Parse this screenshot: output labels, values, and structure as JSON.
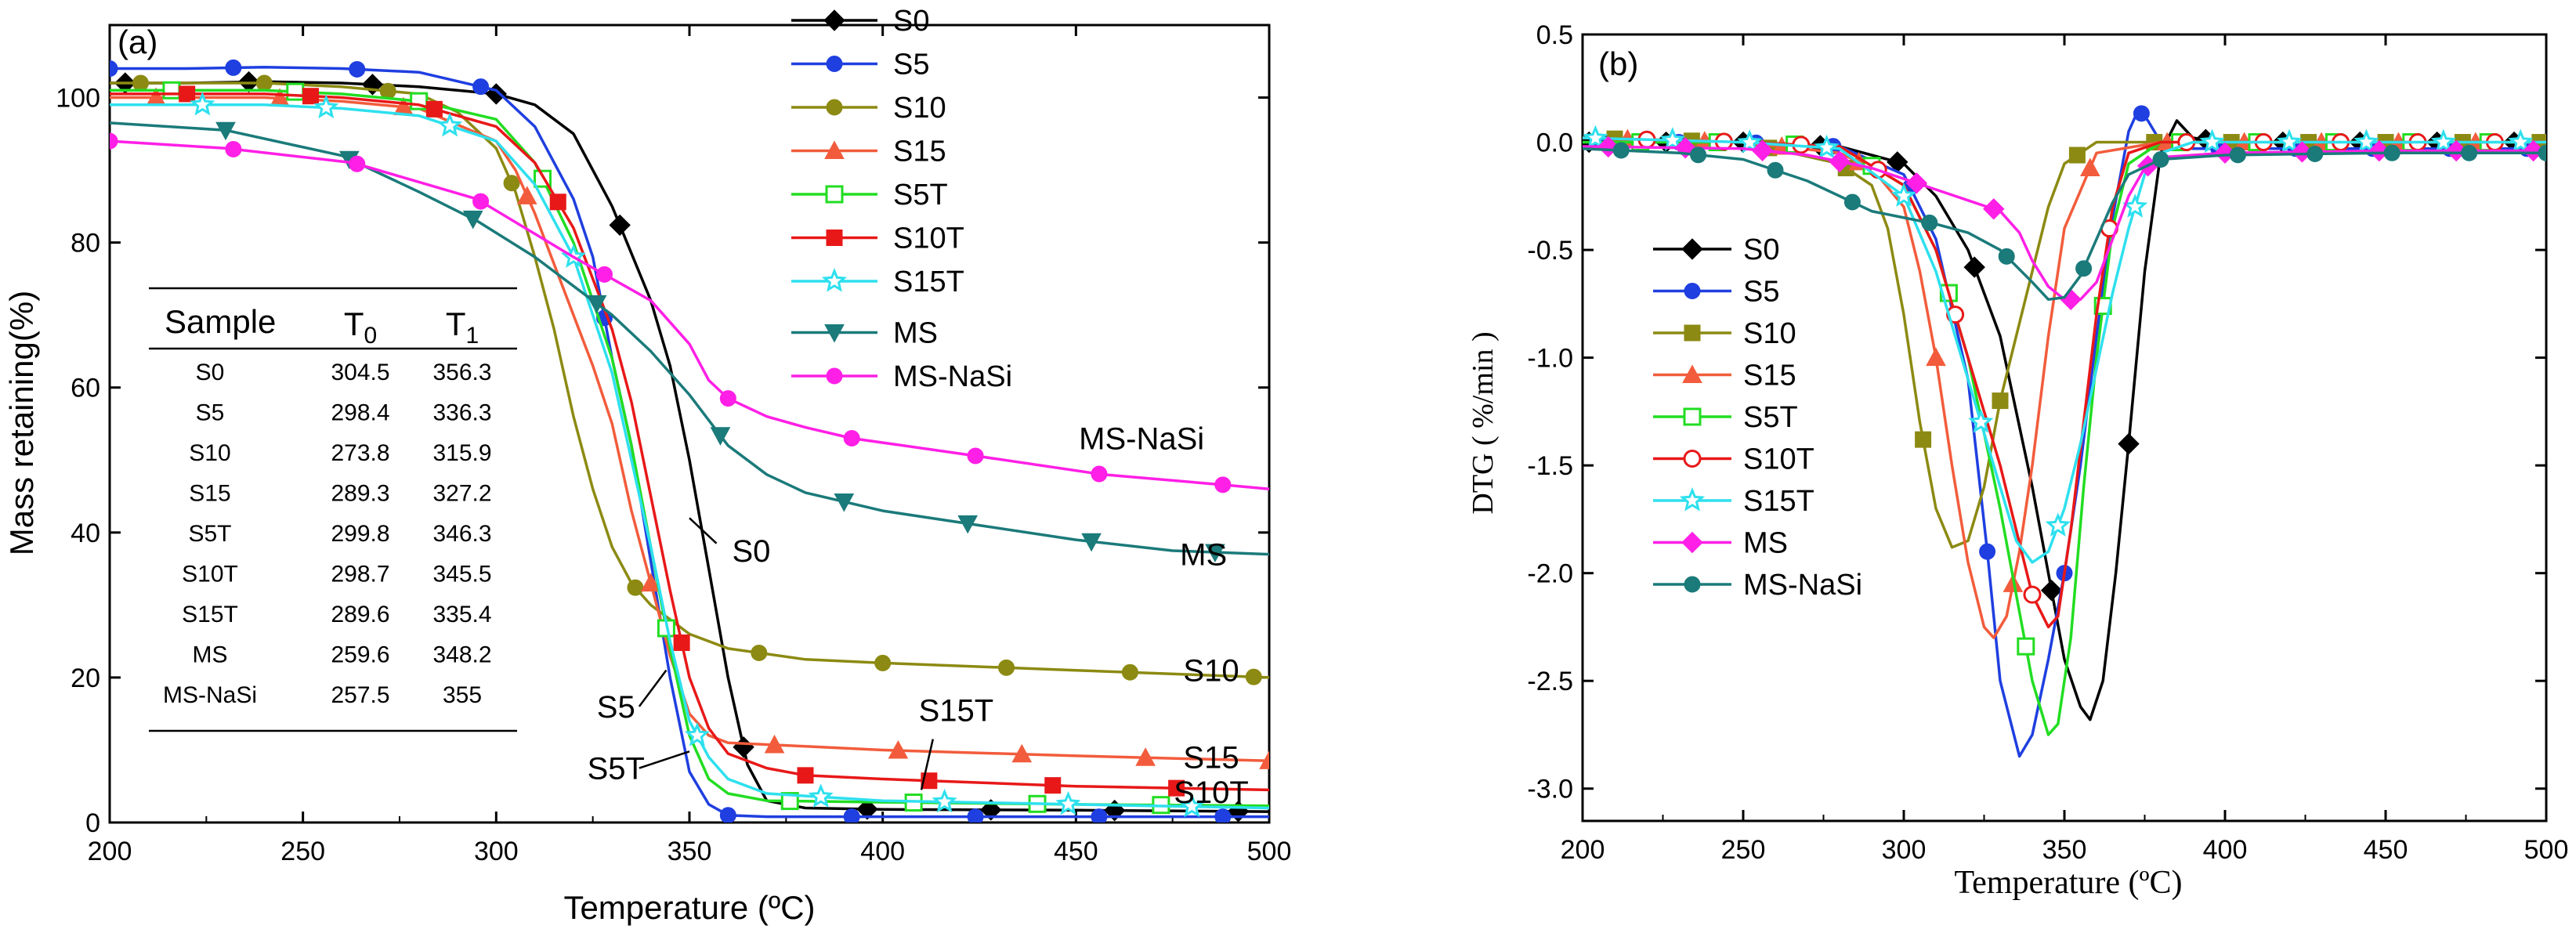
{
  "chart_data": [
    {
      "type": "line",
      "panel_label": "(a)",
      "xlabel": "Temperature (ºC)",
      "ylabel": "Mass retaining(%)",
      "xlim": [
        200,
        500
      ],
      "ylim": [
        0,
        110
      ],
      "xticks": [
        200,
        250,
        300,
        350,
        400,
        450,
        500
      ],
      "yticks": [
        0,
        20,
        40,
        60,
        80,
        100
      ],
      "grid": false,
      "legend_position": "right, outside plot area",
      "series": [
        {
          "name": "S0",
          "color": "#000000",
          "marker": "diamond",
          "x": [
            200,
            220,
            240,
            260,
            280,
            300,
            310,
            320,
            330,
            340,
            345,
            350,
            355,
            360,
            365,
            370,
            380,
            400,
            450,
            500
          ],
          "y": [
            102,
            102,
            102.2,
            102,
            101.5,
            100.5,
            99,
            95,
            85,
            72,
            63,
            50,
            35,
            20,
            8,
            3,
            2,
            1.8,
            1.7,
            1.5
          ]
        },
        {
          "name": "S5",
          "color": "#1f3fe0",
          "marker": "circle",
          "x": [
            200,
            220,
            240,
            260,
            280,
            300,
            310,
            320,
            325,
            330,
            335,
            340,
            345,
            350,
            355,
            360,
            370,
            400,
            450,
            500
          ],
          "y": [
            104,
            104,
            104.2,
            104,
            103.5,
            101,
            96,
            86,
            78,
            64,
            52,
            36,
            20,
            7,
            2.5,
            1,
            0.8,
            0.8,
            0.8,
            0.8
          ]
        },
        {
          "name": "S10",
          "color": "#8c8a12",
          "marker": "circle",
          "x": [
            200,
            220,
            240,
            260,
            280,
            290,
            300,
            305,
            310,
            315,
            320,
            325,
            330,
            335,
            340,
            350,
            360,
            380,
            400,
            450,
            500
          ],
          "y": [
            102,
            102,
            102,
            101.5,
            100.5,
            98,
            93,
            87,
            78,
            68,
            56,
            46,
            38,
            33,
            30,
            26,
            24,
            22.5,
            22,
            21,
            20
          ]
        },
        {
          "name": "S15",
          "color": "#f25c3c",
          "marker": "triangle",
          "x": [
            200,
            220,
            240,
            260,
            280,
            300,
            305,
            310,
            315,
            320,
            325,
            330,
            335,
            340,
            345,
            350,
            355,
            360,
            380,
            400,
            450,
            500
          ],
          "y": [
            100,
            100,
            100,
            99.5,
            98.5,
            94,
            90,
            84,
            77,
            70,
            63,
            55,
            43,
            33,
            23,
            15,
            12,
            11,
            10.5,
            10,
            9.2,
            8.5
          ]
        },
        {
          "name": "S5T",
          "color": "#22dd22",
          "marker": "square-open",
          "x": [
            200,
            220,
            240,
            260,
            280,
            300,
            310,
            320,
            330,
            335,
            340,
            345,
            350,
            355,
            360,
            370,
            400,
            450,
            500
          ],
          "y": [
            101,
            101,
            101,
            100.5,
            99.5,
            97,
            91,
            80,
            64,
            52,
            38,
            24,
            12,
            6,
            4,
            3,
            2.8,
            2.5,
            2.3
          ]
        },
        {
          "name": "S10T",
          "color": "#e81818",
          "marker": "square",
          "x": [
            200,
            220,
            240,
            260,
            280,
            300,
            310,
            320,
            330,
            335,
            340,
            345,
            350,
            355,
            360,
            370,
            380,
            400,
            450,
            500
          ],
          "y": [
            100.5,
            100.5,
            100.5,
            100,
            99,
            96,
            91,
            82,
            68,
            58,
            45,
            32,
            20,
            13,
            9.5,
            7.5,
            6.5,
            6,
            5,
            4.5
          ]
        },
        {
          "name": "S15T",
          "color": "#2ee0ee",
          "marker": "star-open",
          "x": [
            200,
            220,
            240,
            260,
            280,
            300,
            310,
            320,
            330,
            335,
            340,
            345,
            350,
            355,
            360,
            370,
            400,
            450,
            500
          ],
          "y": [
            99,
            99,
            99,
            98.5,
            97.5,
            94,
            88,
            78,
            62,
            50,
            38,
            25,
            14,
            9,
            6,
            4,
            3,
            2.5,
            2
          ]
        },
        {
          "name": "MS",
          "color": "#1b7a7a",
          "marker": "triangle-down",
          "x": [
            200,
            230,
            260,
            280,
            295,
            310,
            320,
            330,
            340,
            350,
            360,
            370,
            380,
            400,
            425,
            450,
            475,
            500
          ],
          "y": [
            96.5,
            95.5,
            92,
            87,
            83,
            78,
            74,
            70,
            65,
            59,
            52,
            48,
            45.5,
            43,
            41,
            39,
            37.5,
            37
          ]
        },
        {
          "name": "MS-NaSi",
          "color": "#ff1fe6",
          "marker": "circle",
          "x": [
            200,
            230,
            263,
            295,
            320,
            340,
            350,
            355,
            360,
            370,
            380,
            392,
            425,
            457,
            490,
            500
          ],
          "y": [
            94,
            93,
            91,
            86,
            78,
            72,
            66,
            61,
            58.5,
            56,
            54.5,
            53,
            50.5,
            48,
            46.5,
            46
          ]
        }
      ],
      "annotations": [
        {
          "text": "S0",
          "x": 366,
          "y": 36
        },
        {
          "text": "S5",
          "x": 331,
          "y": 14.5
        },
        {
          "text": "S5T",
          "x": 331,
          "y": 6
        },
        {
          "text": "MS-NaSi",
          "x": 467,
          "y": 51.5
        },
        {
          "text": "MS",
          "x": 483,
          "y": 35.5
        },
        {
          "text": "S10",
          "x": 485,
          "y": 19.5
        },
        {
          "text": "S15",
          "x": 485,
          "y": 7.5
        },
        {
          "text": "S15T",
          "x": 419,
          "y": 14
        },
        {
          "text": "S10T",
          "x": 485,
          "y": 2.7
        }
      ],
      "table": {
        "headers": [
          "Sample",
          "T0",
          "T1"
        ],
        "rows": [
          [
            "S0",
            "304.5",
            "356.3"
          ],
          [
            "S5",
            "298.4",
            "336.3"
          ],
          [
            "S10",
            "273.8",
            "315.9"
          ],
          [
            "S15",
            "289.3",
            "327.2"
          ],
          [
            "S5T",
            "299.8",
            "346.3"
          ],
          [
            "S10T",
            "298.7",
            "345.5"
          ],
          [
            "S15T",
            "289.6",
            "335.4"
          ],
          [
            "MS",
            "259.6",
            "348.2"
          ],
          [
            "MS-NaSi",
            "257.5",
            "355"
          ]
        ]
      }
    },
    {
      "type": "line",
      "panel_label": "(b)",
      "xlabel": "Temperature (ºC)",
      "ylabel": "DTG ( %/min )",
      "xlim": [
        200,
        500
      ],
      "ylim": [
        -3.15,
        0.5
      ],
      "xticks": [
        200,
        250,
        300,
        350,
        400,
        450,
        500
      ],
      "yticks": [
        -3.0,
        -2.5,
        -2.0,
        -1.5,
        -1.0,
        -0.5,
        0.0,
        0.5
      ],
      "grid": false,
      "legend_position": "left, inside plot area",
      "series": [
        {
          "name": "S0",
          "color": "#000000",
          "marker": "diamond",
          "x": [
            200,
            250,
            280,
            300,
            310,
            320,
            330,
            340,
            345,
            350,
            355,
            358,
            362,
            366,
            370,
            375,
            380,
            385,
            390,
            400,
            450,
            500
          ],
          "y": [
            0.0,
            0.0,
            -0.02,
            -0.1,
            -0.25,
            -0.5,
            -0.9,
            -1.6,
            -2.0,
            -2.4,
            -2.62,
            -2.68,
            -2.5,
            -2.0,
            -1.4,
            -0.6,
            -0.05,
            0.1,
            0.02,
            0.0,
            0.0,
            0.0
          ]
        },
        {
          "name": "S5",
          "color": "#1f3fe0",
          "marker": "circle",
          "x": [
            200,
            250,
            280,
            300,
            310,
            320,
            326,
            330,
            336,
            340,
            345,
            350,
            355,
            360,
            365,
            370,
            373,
            376,
            380,
            390,
            450,
            500
          ],
          "y": [
            0.0,
            0.0,
            -0.02,
            -0.15,
            -0.45,
            -1.1,
            -1.9,
            -2.5,
            -2.85,
            -2.75,
            -2.4,
            -2.0,
            -1.5,
            -0.9,
            -0.35,
            0.05,
            0.15,
            0.1,
            0.0,
            -0.03,
            -0.03,
            -0.03
          ]
        },
        {
          "name": "S10",
          "color": "#8c8a12",
          "marker": "square",
          "x": [
            200,
            250,
            280,
            290,
            295,
            300,
            305,
            310,
            315,
            320,
            325,
            330,
            335,
            340,
            345,
            350,
            360,
            380,
            450,
            500
          ],
          "y": [
            0.02,
            0.0,
            -0.1,
            -0.2,
            -0.4,
            -0.8,
            -1.3,
            -1.7,
            -1.88,
            -1.85,
            -1.6,
            -1.2,
            -0.9,
            -0.6,
            -0.3,
            -0.1,
            0.0,
            0.0,
            0.0,
            0.0
          ]
        },
        {
          "name": "S15",
          "color": "#f25c3c",
          "marker": "triangle",
          "x": [
            200,
            250,
            280,
            290,
            300,
            305,
            310,
            315,
            320,
            325,
            328,
            332,
            336,
            340,
            345,
            350,
            360,
            380,
            450,
            500
          ],
          "y": [
            0.02,
            0.0,
            -0.05,
            -0.12,
            -0.3,
            -0.6,
            -1.0,
            -1.5,
            -1.95,
            -2.25,
            -2.3,
            -2.2,
            -1.9,
            -1.5,
            -0.9,
            -0.4,
            -0.05,
            0.0,
            0.0,
            0.0
          ]
        },
        {
          "name": "S5T",
          "color": "#22dd22",
          "marker": "square-open",
          "x": [
            200,
            250,
            280,
            300,
            310,
            320,
            330,
            335,
            340,
            345,
            348,
            352,
            356,
            360,
            365,
            370,
            380,
            450,
            500
          ],
          "y": [
            0.0,
            0.0,
            -0.02,
            -0.2,
            -0.5,
            -1.0,
            -1.7,
            -2.1,
            -2.5,
            -2.75,
            -2.7,
            -2.3,
            -1.6,
            -1.0,
            -0.4,
            -0.1,
            0.0,
            0.0,
            0.0
          ]
        },
        {
          "name": "S10T",
          "color": "#e81818",
          "marker": "circle-open",
          "x": [
            200,
            250,
            280,
            300,
            310,
            320,
            330,
            335,
            340,
            345,
            348,
            352,
            356,
            360,
            365,
            370,
            380,
            450,
            500
          ],
          "y": [
            0.02,
            0.0,
            -0.02,
            -0.2,
            -0.5,
            -1.0,
            -1.5,
            -1.8,
            -2.1,
            -2.25,
            -2.2,
            -1.8,
            -1.3,
            -0.8,
            -0.3,
            -0.05,
            0.0,
            0.0,
            0.0
          ]
        },
        {
          "name": "S15T",
          "color": "#2ee0ee",
          "marker": "star-open",
          "x": [
            200,
            250,
            280,
            300,
            310,
            320,
            330,
            335,
            340,
            345,
            350,
            355,
            360,
            365,
            370,
            375,
            380,
            390,
            450,
            500
          ],
          "y": [
            0.02,
            0.0,
            -0.03,
            -0.25,
            -0.6,
            -1.1,
            -1.6,
            -1.85,
            -1.95,
            -1.9,
            -1.7,
            -1.4,
            -1.05,
            -0.7,
            -0.4,
            -0.15,
            -0.05,
            0.0,
            0.0,
            0.0
          ]
        },
        {
          "name": "MS",
          "color": "#ff1fe6",
          "marker": "diamond",
          "x": [
            200,
            250,
            270,
            290,
            300,
            310,
            320,
            330,
            336,
            340,
            345,
            350,
            355,
            360,
            365,
            370,
            375,
            380,
            400,
            450,
            500
          ],
          "y": [
            -0.02,
            -0.03,
            -0.06,
            -0.12,
            -0.17,
            -0.22,
            -0.27,
            -0.32,
            -0.42,
            -0.55,
            -0.67,
            -0.73,
            -0.73,
            -0.65,
            -0.45,
            -0.25,
            -0.12,
            -0.07,
            -0.05,
            -0.04,
            -0.04
          ]
        },
        {
          "name": "MS-NaSi",
          "color": "#1b7a7a",
          "marker": "circle",
          "x": [
            200,
            230,
            250,
            270,
            290,
            310,
            320,
            330,
            340,
            345,
            350,
            355,
            360,
            365,
            370,
            380,
            400,
            450,
            500
          ],
          "y": [
            -0.03,
            -0.05,
            -0.08,
            -0.18,
            -0.32,
            -0.38,
            -0.42,
            -0.5,
            -0.65,
            -0.73,
            -0.72,
            -0.62,
            -0.45,
            -0.28,
            -0.15,
            -0.08,
            -0.06,
            -0.05,
            -0.05
          ]
        }
      ]
    }
  ]
}
